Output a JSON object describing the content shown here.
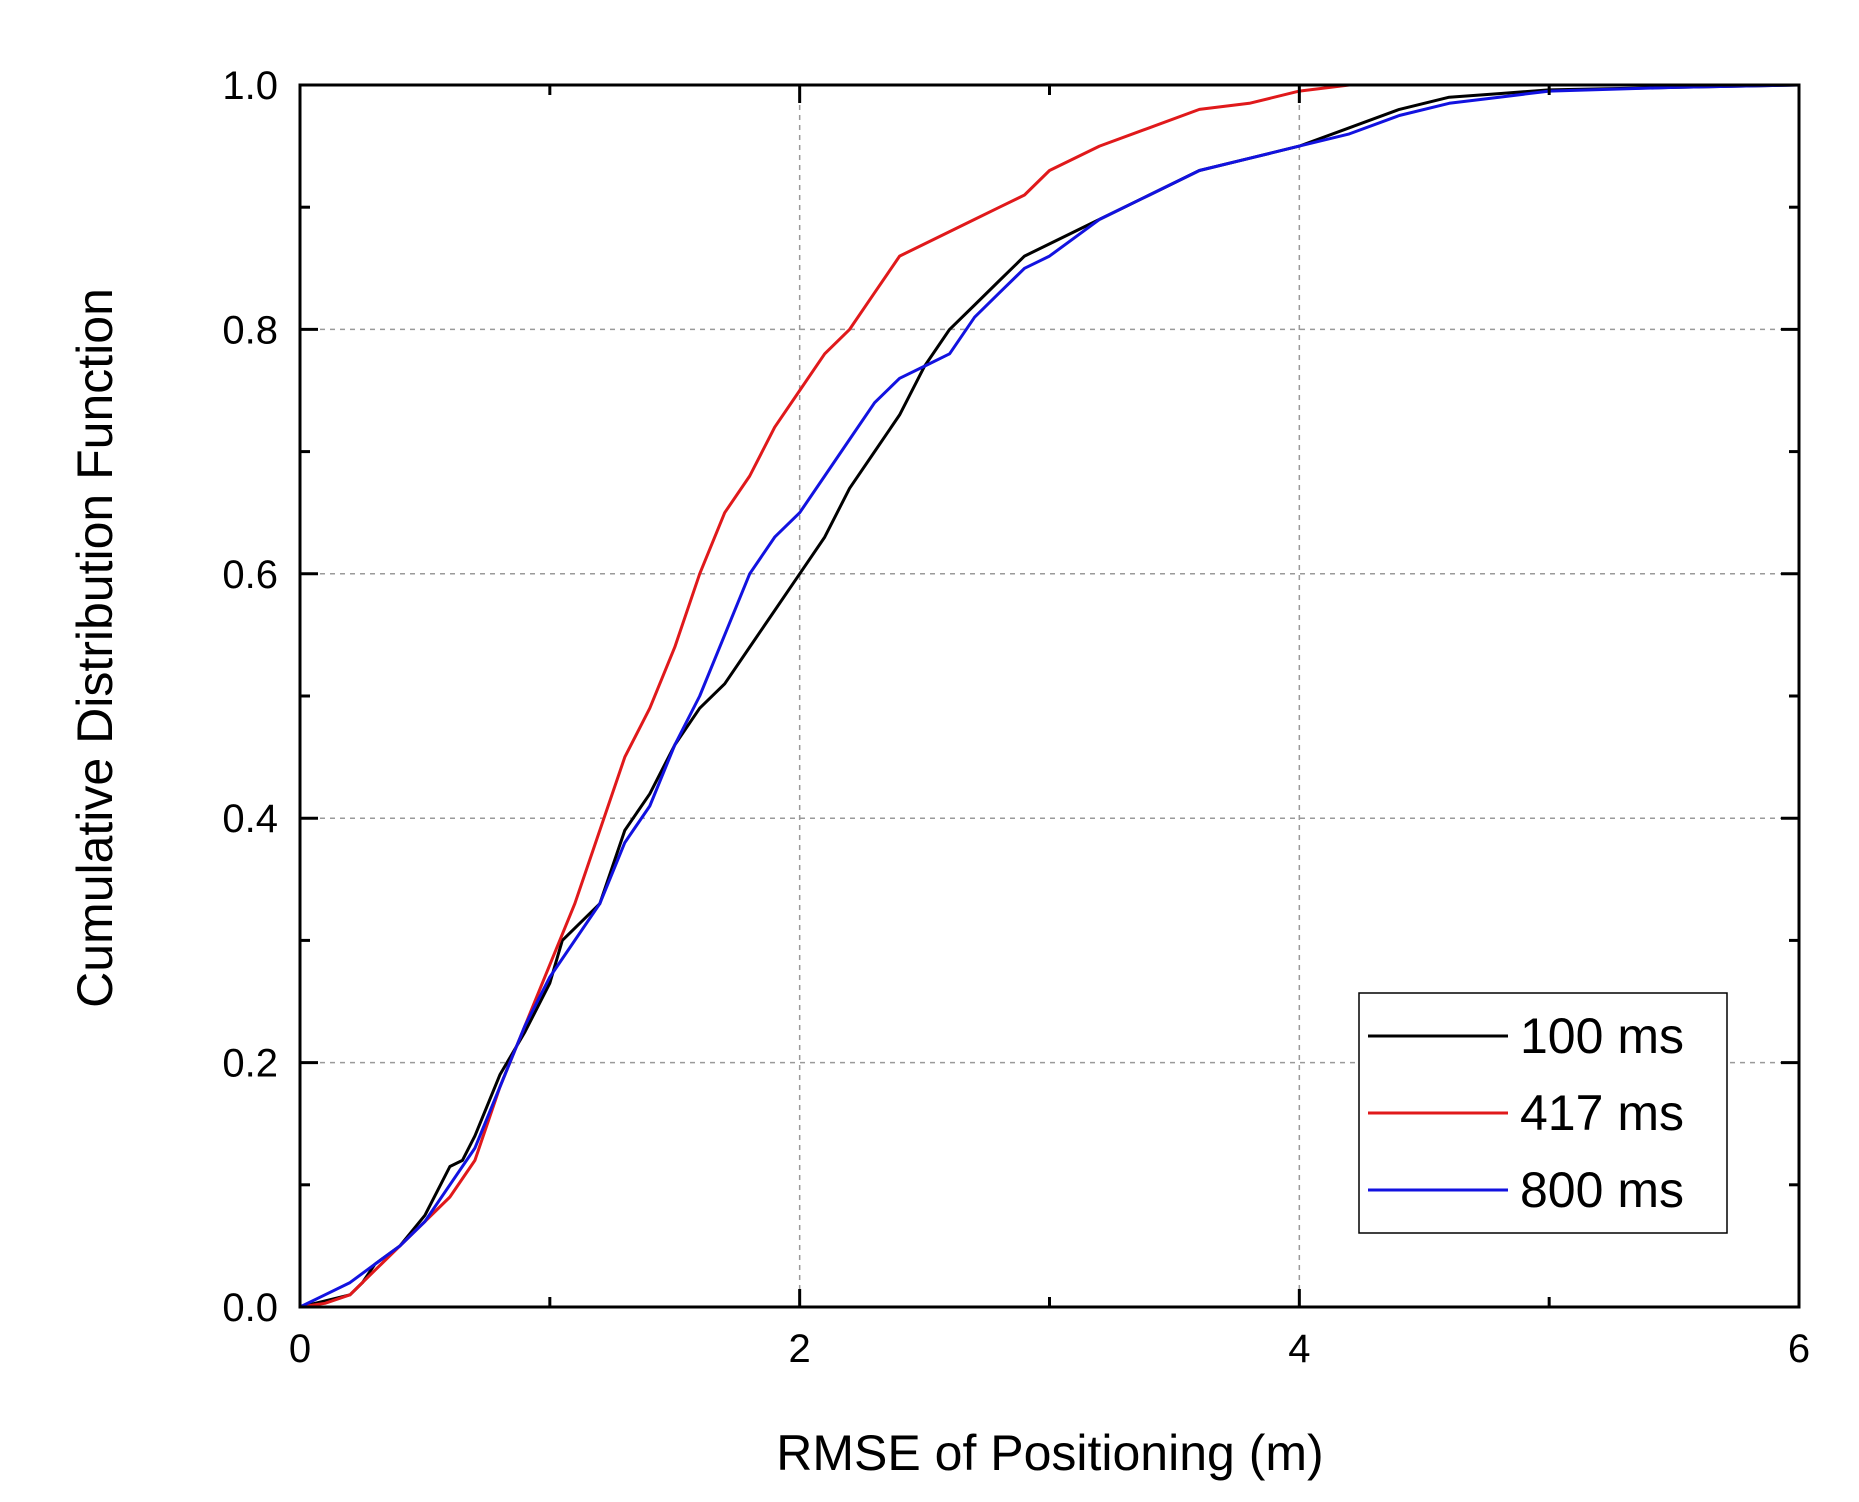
{
  "chart_data": {
    "type": "line",
    "title": "",
    "xlabel": "RMSE of Positioning (m)",
    "ylabel": "Cumulative Distribution Function",
    "xlim": [
      0,
      6
    ],
    "ylim": [
      0,
      1.0
    ],
    "x_ticks": [
      0,
      2,
      4,
      6
    ],
    "x_tick_labels": [
      "0",
      "2",
      "4",
      "6"
    ],
    "x_minor_ticks": [
      1,
      3,
      5
    ],
    "y_ticks": [
      0,
      0.2,
      0.4,
      0.6,
      0.8,
      1.0
    ],
    "y_tick_labels": [
      "0.0",
      "0.2",
      "0.4",
      "0.6",
      "0.8",
      "1.0"
    ],
    "y_minor_ticks": [
      0.1,
      0.3,
      0.5,
      0.7,
      0.9
    ],
    "grid": true,
    "legend_position": "bottom-right",
    "series": [
      {
        "name": "100 ms",
        "color": "#000000",
        "points": [
          [
            0.0,
            0.0
          ],
          [
            0.1,
            0.005
          ],
          [
            0.2,
            0.01
          ],
          [
            0.25,
            0.02
          ],
          [
            0.3,
            0.035
          ],
          [
            0.4,
            0.05
          ],
          [
            0.5,
            0.075
          ],
          [
            0.55,
            0.095
          ],
          [
            0.6,
            0.115
          ],
          [
            0.65,
            0.12
          ],
          [
            0.7,
            0.14
          ],
          [
            0.8,
            0.19
          ],
          [
            0.9,
            0.225
          ],
          [
            1.0,
            0.265
          ],
          [
            1.05,
            0.3
          ],
          [
            1.1,
            0.31
          ],
          [
            1.2,
            0.33
          ],
          [
            1.3,
            0.39
          ],
          [
            1.4,
            0.42
          ],
          [
            1.5,
            0.46
          ],
          [
            1.6,
            0.49
          ],
          [
            1.7,
            0.51
          ],
          [
            1.8,
            0.54
          ],
          [
            1.9,
            0.57
          ],
          [
            2.0,
            0.6
          ],
          [
            2.1,
            0.63
          ],
          [
            2.2,
            0.67
          ],
          [
            2.3,
            0.7
          ],
          [
            2.4,
            0.73
          ],
          [
            2.5,
            0.77
          ],
          [
            2.6,
            0.8
          ],
          [
            2.7,
            0.82
          ],
          [
            2.8,
            0.84
          ],
          [
            2.9,
            0.86
          ],
          [
            3.0,
            0.87
          ],
          [
            3.2,
            0.89
          ],
          [
            3.4,
            0.91
          ],
          [
            3.6,
            0.93
          ],
          [
            3.8,
            0.94
          ],
          [
            4.0,
            0.95
          ],
          [
            4.2,
            0.965
          ],
          [
            4.4,
            0.98
          ],
          [
            4.6,
            0.99
          ],
          [
            4.8,
            0.993
          ],
          [
            5.0,
            0.996
          ],
          [
            5.5,
            0.998
          ],
          [
            6.0,
            1.0
          ]
        ]
      },
      {
        "name": "417 ms",
        "color": "#e0191b",
        "points": [
          [
            0.0,
            0.0
          ],
          [
            0.1,
            0.003
          ],
          [
            0.2,
            0.01
          ],
          [
            0.3,
            0.03
          ],
          [
            0.4,
            0.05
          ],
          [
            0.5,
            0.07
          ],
          [
            0.6,
            0.09
          ],
          [
            0.7,
            0.12
          ],
          [
            0.8,
            0.18
          ],
          [
            0.9,
            0.23
          ],
          [
            1.0,
            0.28
          ],
          [
            1.1,
            0.33
          ],
          [
            1.2,
            0.39
          ],
          [
            1.3,
            0.45
          ],
          [
            1.4,
            0.49
          ],
          [
            1.5,
            0.54
          ],
          [
            1.6,
            0.6
          ],
          [
            1.7,
            0.65
          ],
          [
            1.8,
            0.68
          ],
          [
            1.9,
            0.72
          ],
          [
            2.0,
            0.75
          ],
          [
            2.1,
            0.78
          ],
          [
            2.2,
            0.8
          ],
          [
            2.3,
            0.83
          ],
          [
            2.4,
            0.86
          ],
          [
            2.5,
            0.87
          ],
          [
            2.6,
            0.88
          ],
          [
            2.7,
            0.89
          ],
          [
            2.8,
            0.9
          ],
          [
            2.9,
            0.91
          ],
          [
            3.0,
            0.93
          ],
          [
            3.2,
            0.95
          ],
          [
            3.4,
            0.965
          ],
          [
            3.6,
            0.98
          ],
          [
            3.8,
            0.985
          ],
          [
            4.0,
            0.995
          ],
          [
            4.2,
            1.0
          ],
          [
            6.0,
            1.0
          ]
        ]
      },
      {
        "name": "800 ms",
        "color": "#1212e0",
        "points": [
          [
            0.0,
            0.0
          ],
          [
            0.1,
            0.01
          ],
          [
            0.2,
            0.02
          ],
          [
            0.3,
            0.035
          ],
          [
            0.4,
            0.05
          ],
          [
            0.5,
            0.07
          ],
          [
            0.6,
            0.1
          ],
          [
            0.7,
            0.13
          ],
          [
            0.8,
            0.18
          ],
          [
            0.9,
            0.23
          ],
          [
            1.0,
            0.27
          ],
          [
            1.1,
            0.3
          ],
          [
            1.2,
            0.33
          ],
          [
            1.3,
            0.38
          ],
          [
            1.4,
            0.41
          ],
          [
            1.5,
            0.46
          ],
          [
            1.6,
            0.5
          ],
          [
            1.7,
            0.55
          ],
          [
            1.8,
            0.6
          ],
          [
            1.9,
            0.63
          ],
          [
            2.0,
            0.65
          ],
          [
            2.1,
            0.68
          ],
          [
            2.2,
            0.71
          ],
          [
            2.3,
            0.74
          ],
          [
            2.4,
            0.76
          ],
          [
            2.5,
            0.77
          ],
          [
            2.6,
            0.78
          ],
          [
            2.7,
            0.81
          ],
          [
            2.8,
            0.83
          ],
          [
            2.9,
            0.85
          ],
          [
            3.0,
            0.86
          ],
          [
            3.2,
            0.89
          ],
          [
            3.4,
            0.91
          ],
          [
            3.6,
            0.93
          ],
          [
            3.8,
            0.94
          ],
          [
            4.0,
            0.95
          ],
          [
            4.2,
            0.96
          ],
          [
            4.4,
            0.975
          ],
          [
            4.6,
            0.985
          ],
          [
            4.8,
            0.99
          ],
          [
            5.0,
            0.995
          ],
          [
            5.5,
            0.998
          ],
          [
            6.0,
            1.0
          ]
        ]
      }
    ]
  }
}
